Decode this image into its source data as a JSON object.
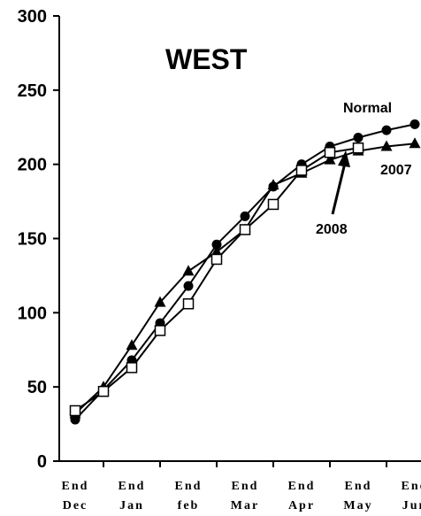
{
  "chart_data": {
    "type": "line",
    "title": "WEST",
    "xlabel": "",
    "ylabel": "",
    "ylim": [
      0,
      300
    ],
    "yticks": [
      "0",
      "50",
      "100",
      "150",
      "200",
      "250",
      "300"
    ],
    "categories": [
      [
        "End",
        "Dec"
      ],
      [
        "End",
        "Jan"
      ],
      [
        "End",
        "feb"
      ],
      [
        "End",
        "Mar"
      ],
      [
        "End",
        "Apr"
      ],
      [
        "End",
        "May"
      ],
      [
        "End",
        "Jun"
      ]
    ],
    "grid": false,
    "series": [
      {
        "name": "Normal",
        "marker": "circle",
        "x": [
          0,
          0.5,
          1,
          1.5,
          2,
          2.5,
          3,
          3.5,
          4,
          4.5,
          5,
          5.5,
          6
        ],
        "values": [
          28,
          48,
          68,
          93,
          118,
          146,
          165,
          185,
          200,
          212,
          218,
          223,
          227
        ]
      },
      {
        "name": "2007",
        "marker": "triangle",
        "x": [
          0,
          0.5,
          1,
          1.5,
          2,
          2.5,
          3,
          3.5,
          4,
          4.5,
          5,
          5.5,
          6
        ],
        "values": [
          32,
          50,
          78,
          107,
          128,
          141,
          156,
          186,
          194,
          203,
          209,
          212,
          214
        ]
      },
      {
        "name": "2008",
        "marker": "square",
        "x": [
          0,
          0.5,
          1,
          1.5,
          2,
          2.5,
          3,
          3.5,
          4,
          4.5,
          5
        ],
        "values": [
          34,
          47,
          63,
          88,
          106,
          136,
          156,
          173,
          196,
          208,
          211
        ]
      }
    ],
    "annotations": [
      {
        "text": "Normal",
        "series": "Normal"
      },
      {
        "text": "2007",
        "series": "2007"
      },
      {
        "text": "2008",
        "series": "2008",
        "arrow": true
      }
    ]
  }
}
